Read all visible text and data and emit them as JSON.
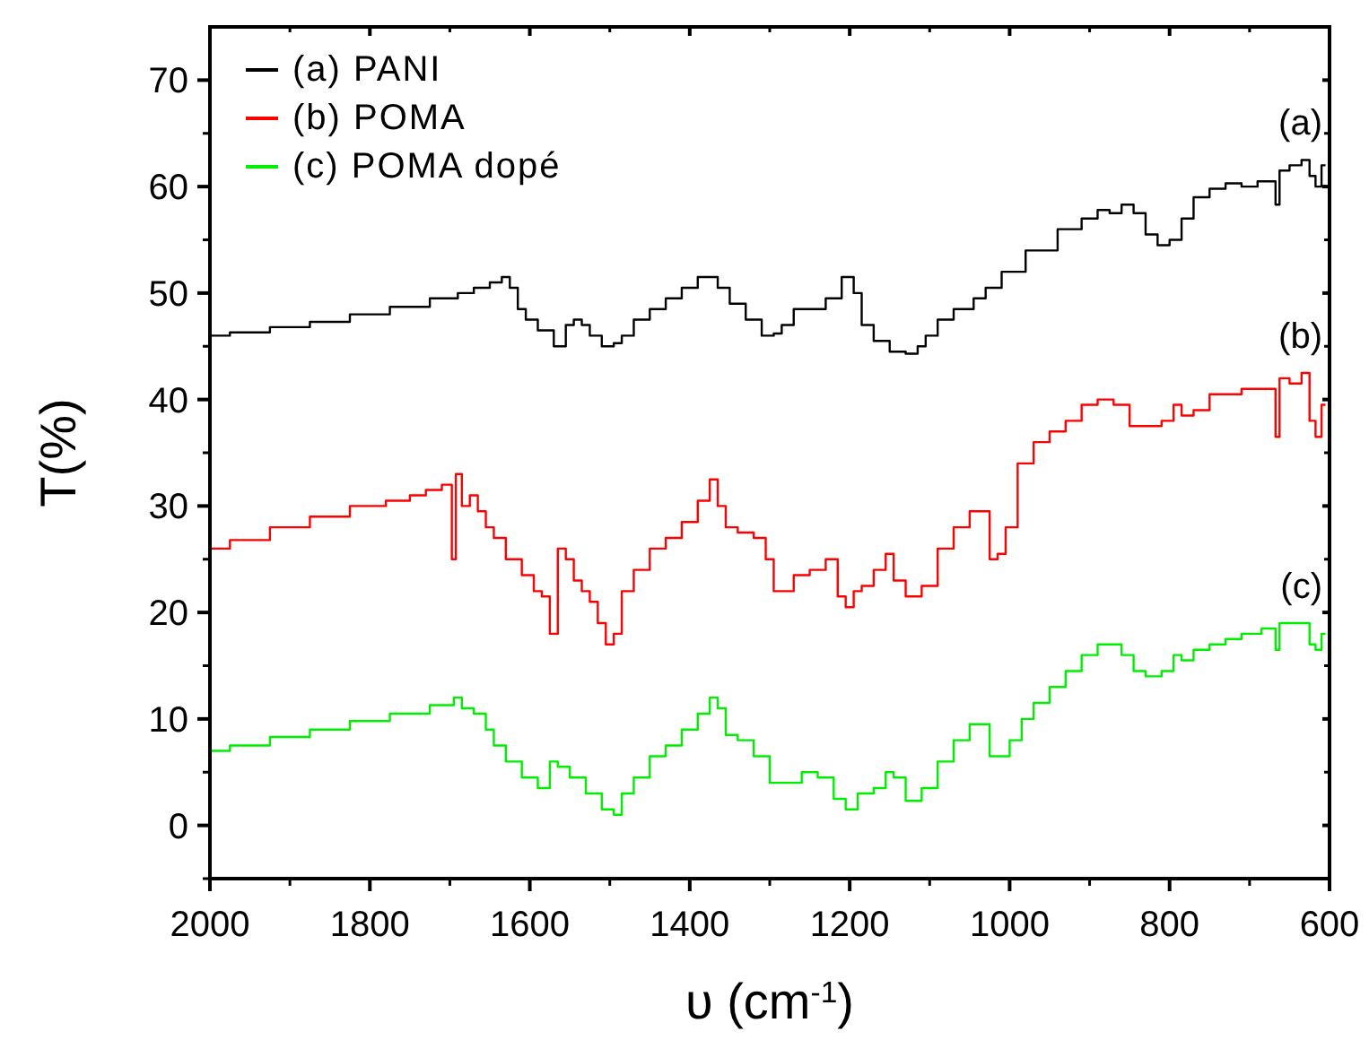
{
  "chart_data": {
    "type": "step",
    "xlabel": "υ (cm$^{-1}$)",
    "ylabel": "T(%)",
    "xlim": [
      2000,
      600
    ],
    "xticks": [
      2000,
      1800,
      1600,
      1400,
      1200,
      1000,
      800,
      600
    ],
    "ylim": [
      -5,
      75
    ],
    "yticks": [
      0,
      10,
      20,
      30,
      40,
      50,
      60,
      70
    ],
    "grid": false,
    "legend": "top left",
    "line_style": "solid",
    "marker": "none",
    "annotations": [
      "(a)",
      "(b)",
      "(c)"
    ],
    "series": [
      {
        "name": "(a) PANI",
        "color": "#000000",
        "x": [
          2000,
          1950,
          1900,
          1850,
          1800,
          1750,
          1700,
          1680,
          1660,
          1640,
          1630,
          1620,
          1610,
          1600,
          1580,
          1560,
          1550,
          1540,
          1530,
          1520,
          1500,
          1490,
          1480,
          1460,
          1440,
          1420,
          1400,
          1380,
          1370,
          1360,
          1340,
          1320,
          1300,
          1290,
          1280,
          1260,
          1240,
          1220,
          1200,
          1190,
          1180,
          1160,
          1140,
          1120,
          1110,
          1100,
          1080,
          1060,
          1050,
          1040,
          1020,
          1000,
          960,
          920,
          900,
          880,
          870,
          850,
          840,
          820,
          810,
          790,
          780,
          760,
          740,
          720,
          700,
          680,
          670,
          665,
          660,
          640,
          630,
          620,
          615,
          605
        ],
        "values": [
          46,
          46.3,
          46.8,
          47.3,
          48,
          48.7,
          49.5,
          50,
          50.5,
          51,
          51.5,
          50.5,
          48.5,
          47.5,
          46.5,
          45,
          47,
          47.5,
          47,
          46,
          45,
          45.3,
          46,
          47.5,
          48.5,
          49.5,
          50.5,
          51.5,
          51.5,
          50.5,
          49,
          47.5,
          46,
          46.2,
          47,
          48.5,
          48.5,
          49.5,
          51.5,
          50,
          47,
          45.5,
          44.5,
          44.3,
          45,
          46,
          47.5,
          48.5,
          48.5,
          49.5,
          50.5,
          52,
          54,
          56,
          57,
          57.8,
          57.5,
          58.3,
          57.5,
          55.5,
          54.5,
          55,
          57,
          59,
          59.8,
          60.3,
          60,
          60.5,
          60.5,
          58.3,
          61.5,
          62,
          62.5,
          61,
          60,
          62
        ]
      },
      {
        "name": "(b) POMA",
        "color": "#ff0000",
        "x": [
          2000,
          1950,
          1900,
          1850,
          1800,
          1760,
          1740,
          1720,
          1700,
          1695,
          1690,
          1680,
          1670,
          1660,
          1650,
          1640,
          1620,
          1600,
          1590,
          1580,
          1570,
          1560,
          1550,
          1540,
          1530,
          1520,
          1510,
          1500,
          1490,
          1480,
          1460,
          1440,
          1420,
          1400,
          1380,
          1370,
          1360,
          1350,
          1330,
          1310,
          1300,
          1290,
          1280,
          1260,
          1240,
          1220,
          1210,
          1200,
          1190,
          1180,
          1160,
          1150,
          1140,
          1120,
          1100,
          1080,
          1060,
          1040,
          1030,
          1020,
          1010,
          1000,
          980,
          960,
          940,
          920,
          900,
          880,
          860,
          840,
          820,
          800,
          790,
          780,
          760,
          740,
          720,
          700,
          670,
          665,
          660,
          640,
          630,
          620,
          615,
          605
        ],
        "values": [
          26,
          26.8,
          28,
          29,
          30,
          30.5,
          31,
          31.5,
          32,
          25,
          33,
          30,
          31,
          29.5,
          28,
          27,
          25,
          23.5,
          22,
          21.5,
          18,
          26,
          25,
          23,
          22,
          21,
          19,
          17,
          18,
          22,
          24,
          26,
          27,
          28.5,
          30.5,
          32.5,
          30,
          28,
          27.5,
          27,
          25,
          22,
          22,
          23.5,
          24,
          25,
          21.5,
          20.5,
          22,
          22.5,
          24,
          25.5,
          23,
          21.5,
          22.5,
          26,
          28,
          29.5,
          29.5,
          25,
          25.5,
          28,
          34,
          36,
          37,
          38,
          39.5,
          40,
          39.5,
          37.5,
          37.5,
          38,
          39.5,
          38.5,
          39,
          40.5,
          40.5,
          41,
          41,
          36.5,
          42,
          41.5,
          42.5,
          38,
          36.5,
          39.5
        ]
      },
      {
        "name": "(c) POMA dopé",
        "color": "#00ee00",
        "x": [
          2000,
          1950,
          1900,
          1850,
          1800,
          1750,
          1700,
          1690,
          1680,
          1660,
          1650,
          1640,
          1620,
          1600,
          1580,
          1570,
          1560,
          1540,
          1520,
          1500,
          1490,
          1480,
          1460,
          1440,
          1420,
          1400,
          1380,
          1370,
          1360,
          1350,
          1330,
          1310,
          1290,
          1270,
          1250,
          1230,
          1210,
          1200,
          1180,
          1160,
          1150,
          1140,
          1120,
          1100,
          1080,
          1060,
          1040,
          1030,
          1020,
          1010,
          990,
          980,
          960,
          940,
          920,
          900,
          880,
          870,
          850,
          840,
          820,
          800,
          790,
          780,
          760,
          740,
          720,
          700,
          670,
          665,
          660,
          640,
          630,
          620,
          615,
          605
        ],
        "values": [
          7,
          7.5,
          8.3,
          9,
          9.8,
          10.5,
          11.3,
          12,
          11,
          10.5,
          9,
          7.5,
          6,
          4.5,
          3.5,
          6,
          5.5,
          4.5,
          3,
          1.5,
          1,
          3,
          4.5,
          6.5,
          7.5,
          9,
          10.5,
          12,
          11,
          8.5,
          8,
          6.5,
          4,
          4,
          5,
          4.5,
          2.5,
          1.5,
          3,
          3.5,
          5,
          4.5,
          2.3,
          3.5,
          6,
          8,
          9.5,
          9.5,
          6.5,
          6.5,
          8,
          10,
          11.5,
          13,
          14.5,
          16,
          17,
          17,
          16,
          14.5,
          14,
          14.5,
          16,
          15.5,
          16.5,
          17,
          17.5,
          18,
          18.5,
          16.5,
          19,
          19,
          19,
          17,
          16.5,
          18
        ]
      }
    ]
  }
}
